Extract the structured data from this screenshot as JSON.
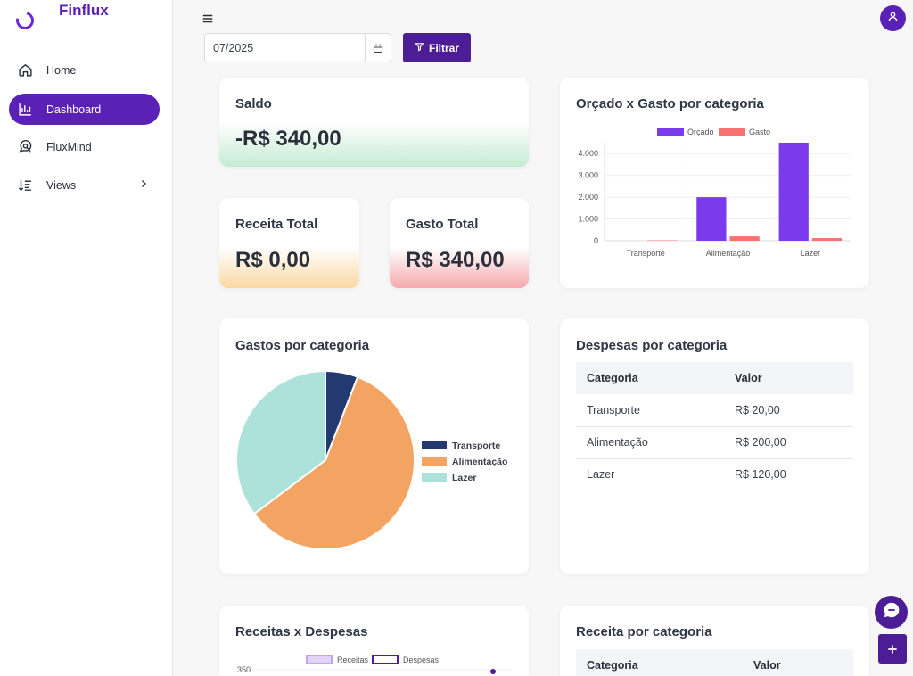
{
  "app": {
    "name": "Finflux"
  },
  "sidebar": {
    "items": [
      {
        "label": "Home",
        "icon": "home-icon"
      },
      {
        "label": "Dashboard",
        "icon": "bar-chart-icon",
        "active": true
      },
      {
        "label": "FluxMind",
        "icon": "chat-search-icon"
      },
      {
        "label": "Views",
        "icon": "sort-list-icon"
      }
    ]
  },
  "filter": {
    "date_value": "07/2025",
    "button_label": "Filtrar"
  },
  "cards": {
    "saldo": {
      "title": "Saldo",
      "value": "-R$ 340,00"
    },
    "receita": {
      "title": "Receita Total",
      "value": "R$ 0,00"
    },
    "gasto": {
      "title": "Gasto Total",
      "value": "R$ 340,00"
    },
    "orcado_gasto": {
      "title": "Orçado x Gasto por categoria"
    },
    "gastos_categoria": {
      "title": "Gastos por categoria"
    },
    "despesas_categoria": {
      "title": "Despesas por categoria",
      "columns": [
        "Categoria",
        "Valor"
      ],
      "rows": [
        [
          "Transporte",
          "R$ 20,00"
        ],
        [
          "Alimentação",
          "R$ 200,00"
        ],
        [
          "Lazer",
          "R$ 120,00"
        ]
      ]
    },
    "receitas_despesas": {
      "title": "Receitas x Despesas"
    },
    "receita_categoria": {
      "title": "Receita por categoria",
      "columns": [
        "Categoria",
        "Valor"
      ]
    }
  },
  "colors": {
    "brand": "#5b21b6",
    "orcado": "#7c3aed",
    "gasto": "#f87171",
    "transporte": "#223a70",
    "alimentacao": "#f4a462",
    "lazer": "#ade2db"
  },
  "chart_data": [
    {
      "type": "bar",
      "title": "Orçado x Gasto por categoria",
      "categories": [
        "Transporte",
        "Alimentação",
        "Lazer"
      ],
      "series": [
        {
          "name": "Orçado",
          "values": [
            0,
            2000,
            4500
          ]
        },
        {
          "name": "Gasto",
          "values": [
            20,
            200,
            120
          ]
        }
      ],
      "ylim": [
        0,
        4500
      ],
      "yticks": [
        "0",
        "1.000",
        "2.000",
        "3.000",
        "4.000"
      ],
      "legend": "top",
      "grid": true
    },
    {
      "type": "pie",
      "title": "Gastos por categoria",
      "categories": [
        "Transporte",
        "Alimentação",
        "Lazer"
      ],
      "values": [
        20,
        200,
        120
      ],
      "legend": "right"
    },
    {
      "type": "line",
      "title": "Receitas x Despesas",
      "series": [
        {
          "name": "Receitas"
        },
        {
          "name": "Despesas"
        }
      ],
      "yticks": [
        "350"
      ],
      "legend": "top"
    }
  ]
}
